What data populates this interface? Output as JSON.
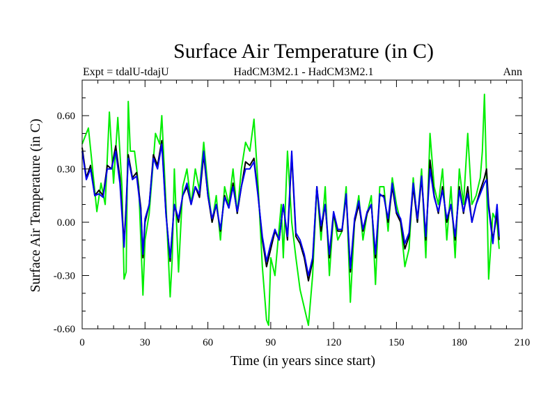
{
  "chart_data": {
    "type": "line",
    "title": "Surface Air Temperature (in C)",
    "subtitle_left": "Expt = tdalU-tdajU",
    "subtitle_center": "HadCM3M2.1 - HadCM3M2.1",
    "subtitle_right": "Ann",
    "xlabel": "Time (in years since start)",
    "ylabel": "Surface Air Temperature (in C)",
    "xlim": [
      0,
      210
    ],
    "ylim": [
      -0.6,
      0.8
    ],
    "xticks": [
      0,
      30,
      60,
      90,
      120,
      150,
      180,
      210
    ],
    "xtick_labels": [
      "0",
      "30",
      "60",
      "90",
      "120",
      "150",
      "180",
      "210"
    ],
    "yticks": [
      -0.6,
      -0.3,
      0.0,
      0.3,
      0.6
    ],
    "ytick_labels": [
      "-0.60",
      "-0.30",
      "0.00",
      "0.30",
      "0.60"
    ],
    "series": [
      {
        "name": "green",
        "color": "#00ee00",
        "x": [
          0,
          3,
          5,
          7,
          9,
          11,
          13,
          15,
          17,
          19,
          20,
          21,
          22,
          23,
          25,
          27,
          29,
          30,
          32,
          35,
          37,
          38,
          40,
          42,
          43,
          44,
          46,
          48,
          50,
          52,
          54,
          56,
          58,
          60,
          62,
          64,
          66,
          68,
          70,
          72,
          74,
          76,
          78,
          80,
          82,
          84,
          86,
          88,
          89,
          90,
          92,
          95,
          96,
          98,
          100,
          102,
          104,
          106,
          108,
          110,
          112,
          114,
          116,
          118,
          120,
          122,
          124,
          126,
          128,
          130,
          132,
          134,
          136,
          138,
          140,
          142,
          144,
          146,
          148,
          150,
          152,
          154,
          156,
          158,
          160,
          162,
          164,
          166,
          168,
          170,
          172,
          174,
          176,
          178,
          180,
          182,
          184,
          186,
          188,
          190,
          191,
          192,
          193,
          194,
          196,
          198,
          199
        ],
        "y": [
          0.44,
          0.53,
          0.3,
          0.06,
          0.22,
          0.1,
          0.62,
          0.22,
          0.59,
          0.2,
          -0.32,
          -0.28,
          0.68,
          0.4,
          0.4,
          0.2,
          -0.41,
          -0.1,
          0.05,
          0.5,
          0.44,
          0.6,
          0.1,
          -0.42,
          -0.2,
          0.3,
          -0.28,
          0.2,
          0.3,
          0.1,
          0.3,
          0.18,
          0.45,
          0.2,
          0.0,
          0.15,
          -0.1,
          0.2,
          0.1,
          0.3,
          0.05,
          0.3,
          0.45,
          0.4,
          0.58,
          0.2,
          -0.25,
          -0.55,
          -0.58,
          -0.2,
          -0.3,
          0.1,
          -0.2,
          0.4,
          0.0,
          -0.2,
          -0.38,
          -0.48,
          -0.58,
          -0.3,
          0.2,
          -0.1,
          0.2,
          -0.3,
          0.05,
          -0.1,
          -0.05,
          0.2,
          -0.45,
          0.0,
          0.15,
          -0.1,
          0.05,
          0.15,
          -0.35,
          0.2,
          0.2,
          -0.05,
          0.25,
          0.1,
          0.0,
          -0.25,
          -0.15,
          0.25,
          0.0,
          0.3,
          -0.2,
          0.5,
          0.2,
          0.1,
          0.3,
          -0.1,
          0.2,
          -0.2,
          0.3,
          0.1,
          0.5,
          0.1,
          0.15,
          0.25,
          0.4,
          0.72,
          0.25,
          -0.32,
          0.05,
          0.0,
          -0.15
        ]
      },
      {
        "name": "black",
        "color": "#000000",
        "x": [
          0,
          2,
          4,
          6,
          8,
          10,
          12,
          14,
          16,
          18,
          20,
          21,
          22,
          24,
          26,
          28,
          29,
          30,
          32,
          34,
          36,
          38,
          40,
          42,
          44,
          46,
          48,
          50,
          52,
          54,
          56,
          58,
          60,
          62,
          64,
          66,
          68,
          70,
          72,
          74,
          76,
          78,
          80,
          82,
          84,
          86,
          88,
          90,
          92,
          94,
          96,
          98,
          100,
          102,
          104,
          106,
          108,
          110,
          112,
          114,
          116,
          118,
          120,
          122,
          124,
          126,
          128,
          130,
          132,
          134,
          136,
          138,
          140,
          142,
          144,
          146,
          148,
          150,
          152,
          154,
          156,
          158,
          160,
          162,
          164,
          166,
          168,
          170,
          172,
          174,
          176,
          178,
          180,
          182,
          184,
          186,
          188,
          190,
          192,
          193,
          194,
          196,
          198,
          199
        ],
        "y": [
          0.42,
          0.25,
          0.32,
          0.15,
          0.18,
          0.15,
          0.32,
          0.3,
          0.43,
          0.25,
          -0.12,
          0.1,
          0.38,
          0.25,
          0.28,
          0.08,
          -0.2,
          0.0,
          0.1,
          0.38,
          0.32,
          0.46,
          0.05,
          -0.22,
          0.1,
          0.0,
          0.15,
          0.2,
          0.1,
          0.2,
          0.14,
          0.38,
          0.15,
          0.0,
          0.1,
          -0.05,
          0.15,
          0.08,
          0.22,
          0.05,
          0.2,
          0.34,
          0.32,
          0.36,
          0.15,
          -0.1,
          -0.25,
          -0.15,
          -0.05,
          -0.1,
          0.1,
          -0.1,
          0.38,
          -0.08,
          -0.12,
          -0.2,
          -0.33,
          -0.22,
          0.2,
          -0.05,
          0.1,
          -0.2,
          0.05,
          -0.05,
          -0.05,
          0.15,
          -0.28,
          0.0,
          0.1,
          -0.05,
          0.05,
          0.1,
          -0.2,
          0.15,
          0.15,
          0.0,
          0.2,
          0.05,
          0.0,
          -0.15,
          -0.08,
          0.2,
          0.0,
          0.25,
          -0.1,
          0.35,
          0.15,
          0.05,
          0.2,
          0.0,
          0.1,
          -0.1,
          0.2,
          0.05,
          0.2,
          0.0,
          0.1,
          0.18,
          0.25,
          0.3,
          0.1,
          -0.1,
          0.05,
          -0.1
        ]
      },
      {
        "name": "blue",
        "color": "#0000ee",
        "x": [
          0,
          2,
          4,
          6,
          8,
          10,
          12,
          14,
          16,
          18,
          20,
          21,
          22,
          24,
          26,
          28,
          29,
          30,
          32,
          34,
          36,
          38,
          40,
          42,
          44,
          46,
          48,
          50,
          52,
          54,
          56,
          58,
          60,
          62,
          64,
          66,
          68,
          70,
          72,
          74,
          76,
          78,
          80,
          82,
          84,
          86,
          88,
          90,
          92,
          94,
          96,
          98,
          100,
          102,
          104,
          106,
          108,
          110,
          112,
          114,
          116,
          118,
          120,
          122,
          124,
          126,
          128,
          130,
          132,
          134,
          136,
          138,
          140,
          142,
          144,
          146,
          148,
          150,
          152,
          154,
          156,
          158,
          160,
          162,
          164,
          166,
          168,
          170,
          172,
          174,
          176,
          178,
          180,
          182,
          184,
          186,
          188,
          190,
          192,
          193,
          194,
          196,
          198,
          199
        ],
        "y": [
          0.4,
          0.24,
          0.3,
          0.15,
          0.16,
          0.14,
          0.3,
          0.3,
          0.4,
          0.22,
          -0.14,
          0.08,
          0.36,
          0.24,
          0.26,
          0.06,
          -0.18,
          0.02,
          0.1,
          0.36,
          0.3,
          0.44,
          0.04,
          -0.2,
          0.1,
          0.02,
          0.15,
          0.22,
          0.1,
          0.2,
          0.16,
          0.4,
          0.15,
          0.02,
          0.1,
          -0.04,
          0.14,
          0.08,
          0.2,
          0.06,
          0.2,
          0.3,
          0.3,
          0.34,
          0.14,
          -0.08,
          -0.22,
          -0.12,
          -0.04,
          -0.1,
          0.1,
          -0.08,
          0.4,
          -0.06,
          -0.1,
          -0.18,
          -0.3,
          -0.2,
          0.2,
          -0.02,
          0.1,
          -0.18,
          0.06,
          -0.04,
          -0.04,
          0.16,
          -0.26,
          0.02,
          0.12,
          -0.04,
          0.06,
          0.1,
          -0.18,
          0.16,
          0.14,
          0.02,
          0.22,
          0.06,
          0.02,
          -0.12,
          -0.06,
          0.22,
          0.02,
          0.26,
          -0.08,
          0.3,
          0.14,
          0.06,
          0.18,
          0.02,
          0.1,
          -0.08,
          0.18,
          0.06,
          0.16,
          0.0,
          0.1,
          0.16,
          0.22,
          0.24,
          0.08,
          -0.12,
          0.1,
          -0.08
        ]
      }
    ]
  }
}
